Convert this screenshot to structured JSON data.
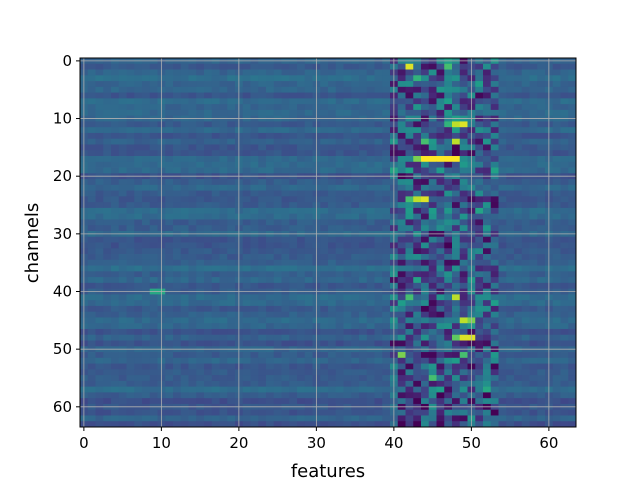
{
  "chart_data": {
    "type": "heatmap",
    "title": "",
    "xlabel": "features",
    "ylabel": "channels",
    "rows": 64,
    "cols": 64,
    "xlim": [
      -0.5,
      63.5
    ],
    "ylim": [
      63.5,
      -0.5
    ],
    "x_ticks": [
      0,
      10,
      20,
      30,
      40,
      50,
      60
    ],
    "y_ticks": [
      0,
      10,
      20,
      30,
      40,
      50,
      60
    ],
    "x_tick_labels": [
      "0",
      "10",
      "20",
      "30",
      "40",
      "50",
      "60"
    ],
    "y_tick_labels": [
      "0",
      "10",
      "20",
      "30",
      "40",
      "50",
      "60"
    ],
    "grid": true,
    "colormap": "viridis",
    "value_range": [
      0,
      1
    ],
    "baseline_value": 0.3,
    "bright_cells": [
      {
        "row": 1,
        "col": 42,
        "value": 0.95
      },
      {
        "row": 1,
        "col": 47,
        "value": 0.7
      },
      {
        "row": 3,
        "col": 43,
        "value": 0.65
      },
      {
        "row": 11,
        "col": 48,
        "value": 0.9
      },
      {
        "row": 11,
        "col": 49,
        "value": 0.95
      },
      {
        "row": 11,
        "col": 47,
        "value": 0.65
      },
      {
        "row": 14,
        "col": 48,
        "value": 0.9
      },
      {
        "row": 14,
        "col": 44,
        "value": 0.7
      },
      {
        "row": 17,
        "col": 44,
        "value": 1.0
      },
      {
        "row": 17,
        "col": 45,
        "value": 1.0
      },
      {
        "row": 17,
        "col": 46,
        "value": 1.0
      },
      {
        "row": 17,
        "col": 47,
        "value": 1.0
      },
      {
        "row": 17,
        "col": 48,
        "value": 1.0
      },
      {
        "row": 17,
        "col": 43,
        "value": 0.8
      },
      {
        "row": 24,
        "col": 43,
        "value": 0.9
      },
      {
        "row": 24,
        "col": 44,
        "value": 0.95
      },
      {
        "row": 24,
        "col": 42,
        "value": 0.7
      },
      {
        "row": 41,
        "col": 48,
        "value": 0.9
      },
      {
        "row": 41,
        "col": 42,
        "value": 0.7
      },
      {
        "row": 45,
        "col": 49,
        "value": 0.9
      },
      {
        "row": 45,
        "col": 50,
        "value": 0.8
      },
      {
        "row": 48,
        "col": 49,
        "value": 0.95
      },
      {
        "row": 48,
        "col": 50,
        "value": 0.95
      },
      {
        "row": 48,
        "col": 48,
        "value": 0.75
      },
      {
        "row": 51,
        "col": 41,
        "value": 0.8
      },
      {
        "row": 51,
        "col": 49,
        "value": 0.7
      },
      {
        "row": 55,
        "col": 45,
        "value": 0.7
      },
      {
        "row": 40,
        "col": 9,
        "value": 0.6
      },
      {
        "row": 40,
        "col": 10,
        "value": 0.6
      }
    ],
    "dark_cells": [
      {
        "row": 6,
        "col": 46,
        "value": 0.05
      },
      {
        "row": 7,
        "col": 45,
        "value": 0.05
      },
      {
        "row": 8,
        "col": 47,
        "value": 0.08
      },
      {
        "row": 20,
        "col": 42,
        "value": 0.06
      },
      {
        "row": 27,
        "col": 44,
        "value": 0.05
      },
      {
        "row": 30,
        "col": 45,
        "value": 0.02
      },
      {
        "row": 30,
        "col": 46,
        "value": 0.03
      },
      {
        "row": 33,
        "col": 43,
        "value": 0.05
      },
      {
        "row": 42,
        "col": 45,
        "value": 0.02
      },
      {
        "row": 53,
        "col": 46,
        "value": 0.05
      },
      {
        "row": 57,
        "col": 47,
        "value": 0.04
      },
      {
        "row": 59,
        "col": 48,
        "value": 0.05
      },
      {
        "row": 62,
        "col": 49,
        "value": 0.03
      }
    ]
  }
}
